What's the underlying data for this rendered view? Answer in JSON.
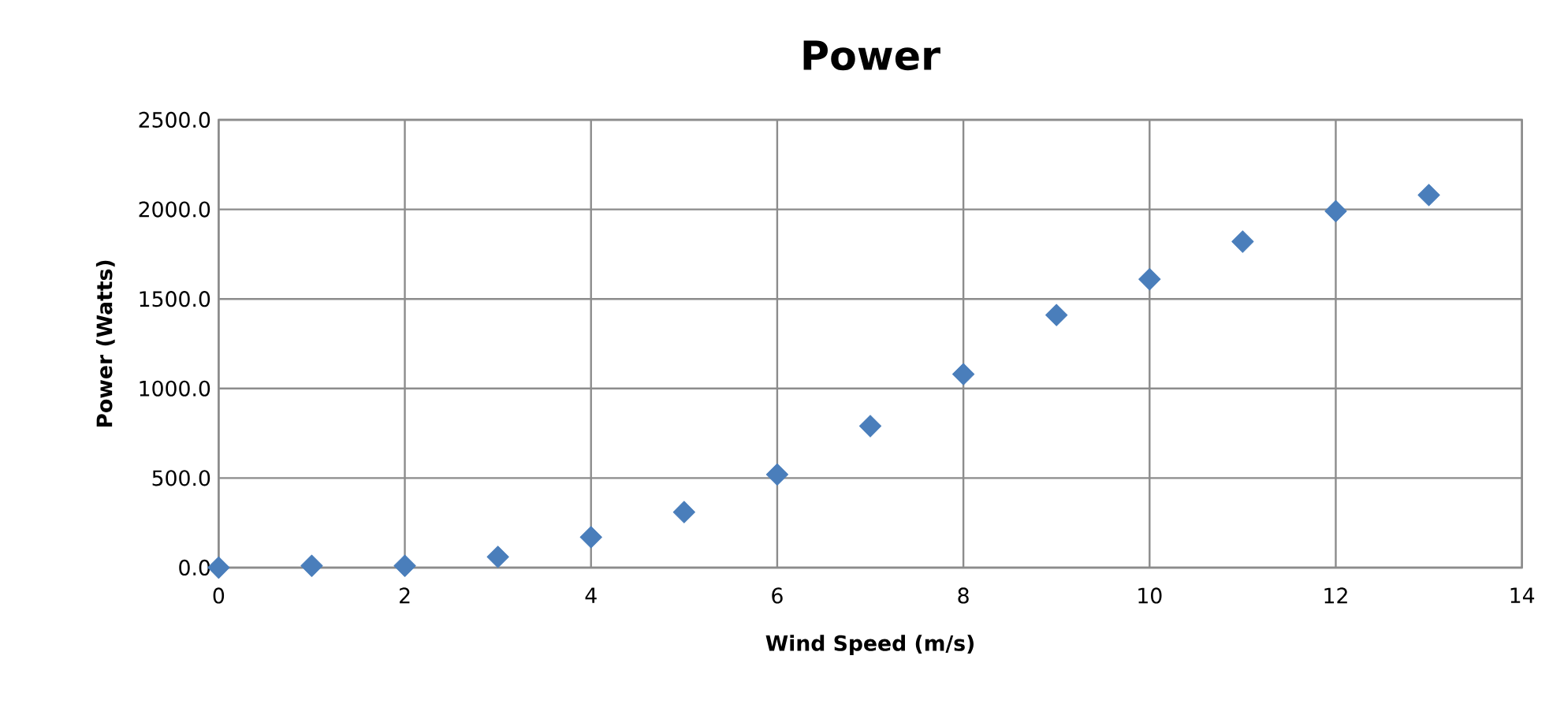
{
  "chart_data": {
    "type": "scatter",
    "title": "Power",
    "xlabel": "Wind Speed (m/s)",
    "ylabel": "Power (Watts)",
    "x": [
      0,
      1,
      2,
      3,
      4,
      5,
      6,
      7,
      8,
      9,
      10,
      11,
      12,
      13
    ],
    "values": [
      0,
      10,
      10,
      60,
      170,
      310,
      520,
      790,
      1080,
      1410,
      1610,
      1820,
      1990,
      2080
    ],
    "color": "#4a7ebb",
    "marker": "diamond",
    "grid": true,
    "xlim": [
      0,
      14
    ],
    "xticks": [
      0,
      2,
      4,
      6,
      8,
      10,
      12,
      14
    ],
    "ylim": [
      0,
      2500
    ],
    "yticks": [
      {
        "value": 0,
        "label": "0.0"
      },
      {
        "value": 500,
        "label": "500.0"
      },
      {
        "value": 1000,
        "label": "1000.0"
      },
      {
        "value": 1500,
        "label": "1500.0"
      },
      {
        "value": 2000,
        "label": "2000.0"
      },
      {
        "value": 2500,
        "label": "2500.0"
      }
    ]
  }
}
